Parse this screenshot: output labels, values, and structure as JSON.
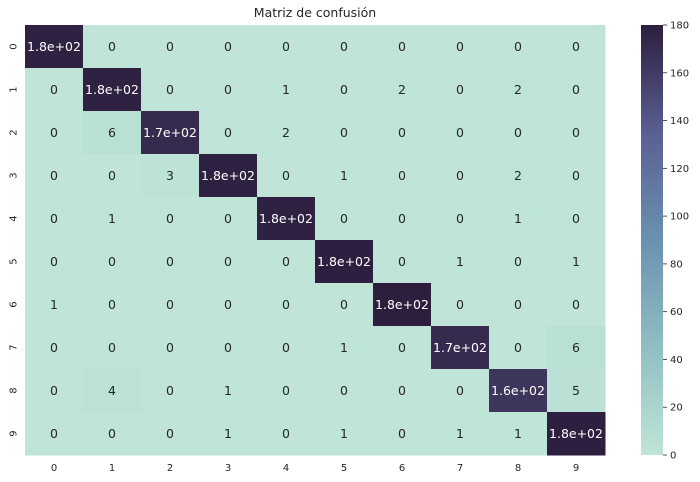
{
  "chart_data": {
    "type": "heatmap",
    "title": "Matriz de confusión",
    "x_categories": [
      "0",
      "1",
      "2",
      "3",
      "4",
      "5",
      "6",
      "7",
      "8",
      "9"
    ],
    "y_categories": [
      "0",
      "1",
      "2",
      "3",
      "4",
      "5",
      "6",
      "7",
      "8",
      "9"
    ],
    "values": [
      [
        178,
        0,
        0,
        0,
        0,
        0,
        0,
        0,
        0,
        0
      ],
      [
        0,
        178,
        0,
        0,
        1,
        0,
        2,
        0,
        2,
        0
      ],
      [
        0,
        6,
        171,
        0,
        2,
        0,
        0,
        0,
        0,
        0
      ],
      [
        0,
        0,
        3,
        178,
        0,
        1,
        0,
        0,
        2,
        0
      ],
      [
        0,
        1,
        0,
        0,
        178,
        0,
        0,
        0,
        1,
        0
      ],
      [
        0,
        0,
        0,
        0,
        0,
        179,
        0,
        1,
        0,
        1
      ],
      [
        1,
        0,
        0,
        0,
        0,
        0,
        180,
        0,
        0,
        0
      ],
      [
        0,
        0,
        0,
        0,
        0,
        1,
        0,
        171,
        0,
        6
      ],
      [
        0,
        4,
        0,
        1,
        0,
        0,
        0,
        0,
        164,
        5
      ],
      [
        0,
        0,
        0,
        1,
        0,
        1,
        0,
        1,
        1,
        179
      ]
    ],
    "cell_labels": [
      [
        "1.8e+02",
        "0",
        "0",
        "0",
        "0",
        "0",
        "0",
        "0",
        "0",
        "0"
      ],
      [
        "0",
        "1.8e+02",
        "0",
        "0",
        "1",
        "0",
        "2",
        "0",
        "2",
        "0"
      ],
      [
        "0",
        "6",
        "1.7e+02",
        "0",
        "2",
        "0",
        "0",
        "0",
        "0",
        "0"
      ],
      [
        "0",
        "0",
        "3",
        "1.8e+02",
        "0",
        "1",
        "0",
        "0",
        "2",
        "0"
      ],
      [
        "0",
        "1",
        "0",
        "0",
        "1.8e+02",
        "0",
        "0",
        "0",
        "1",
        "0"
      ],
      [
        "0",
        "0",
        "0",
        "0",
        "0",
        "1.8e+02",
        "0",
        "1",
        "0",
        "1"
      ],
      [
        "1",
        "0",
        "0",
        "0",
        "0",
        "0",
        "1.8e+02",
        "0",
        "0",
        "0"
      ],
      [
        "0",
        "0",
        "0",
        "0",
        "0",
        "1",
        "0",
        "1.7e+02",
        "0",
        "6"
      ],
      [
        "0",
        "4",
        "0",
        "1",
        "0",
        "0",
        "0",
        "0",
        "1.6e+02",
        "5"
      ],
      [
        "0",
        "0",
        "0",
        "1",
        "0",
        "1",
        "0",
        "1",
        "1",
        "1.8e+02"
      ]
    ],
    "vmin": 0,
    "vmax": 180,
    "colorbar_ticks": [
      0,
      20,
      40,
      60,
      80,
      100,
      120,
      140,
      160,
      180
    ],
    "colormap": [
      "#c0e5d8",
      "#8fbfc3",
      "#6a91b0",
      "#5a5f93",
      "#2d1e3e"
    ]
  }
}
